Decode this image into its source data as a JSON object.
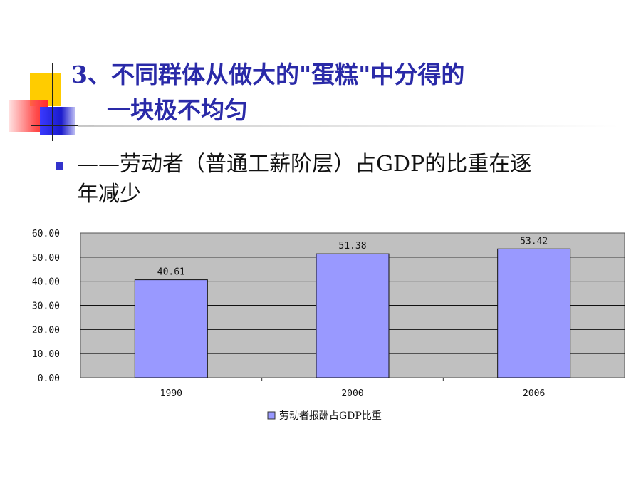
{
  "slide": {
    "title_line1": "3、不同群体从做大的\"蛋糕\"中分得的",
    "title_line2": "一块极不均匀",
    "bullet_line1": "——劳动者（普通工薪阶层）占GDP的比重在逐",
    "bullet_line2": "年减少",
    "accent_color": "#2a2aa8"
  },
  "chart_data": {
    "type": "bar",
    "categories": [
      "1990",
      "2000",
      "2006"
    ],
    "series": [
      {
        "name": "劳动者报酬占GDP比重",
        "values": [
          40.61,
          51.38,
          53.42
        ],
        "labels": [
          "40.61",
          "51.38",
          "53.42"
        ],
        "color": "#9999ff"
      }
    ],
    "ylim": [
      0,
      60
    ],
    "yticks": [
      "0.00",
      "10.00",
      "20.00",
      "30.00",
      "40.00",
      "50.00",
      "60.00"
    ],
    "grid": true,
    "plot_background": "#c0c0c0",
    "legend_position": "bottom"
  }
}
